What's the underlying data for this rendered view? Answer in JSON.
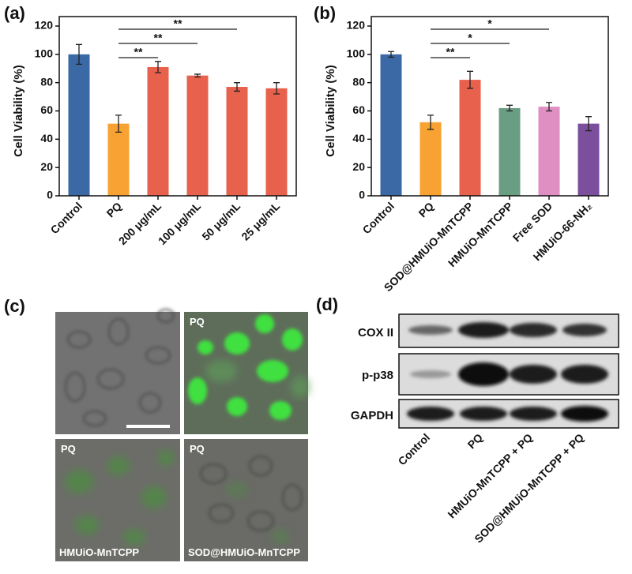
{
  "chart_data": [
    {
      "type": "bar",
      "panel_label": "(a)",
      "y_label": "Cell Viability (%)",
      "categories": [
        "Control",
        "PQ",
        "200 μg/mL",
        "100 μg/mL",
        "50 μg/mL",
        "25 μg/mL"
      ],
      "values": [
        100,
        51,
        91,
        85,
        77,
        76
      ],
      "errors": [
        7,
        6,
        4,
        1,
        3,
        4
      ],
      "colors": [
        "#3a69a6",
        "#f7a232",
        "#e8614d",
        "#e8614d",
        "#e8614d",
        "#e8614d"
      ],
      "ylim": [
        0,
        120
      ],
      "yticks": [
        0,
        20,
        40,
        60,
        80,
        100,
        120
      ],
      "annotations": [
        {
          "label": "**",
          "from": "PQ",
          "to": "200 μg/mL"
        },
        {
          "label": "**",
          "from": "PQ",
          "to": "100 μg/mL"
        },
        {
          "label": "**",
          "from": "PQ",
          "to": "50 μg/mL"
        }
      ]
    },
    {
      "type": "bar",
      "panel_label": "(b)",
      "y_label": "Cell Viability (%)",
      "categories": [
        "Control",
        "PQ",
        "SOD@HMUiO-MnTCPP",
        "HMUiO-MnTCPP",
        "Free SOD",
        "HMUiO-66-NH₂"
      ],
      "values": [
        100,
        52,
        82,
        62,
        63,
        51
      ],
      "errors": [
        2,
        5,
        6,
        2,
        3,
        5
      ],
      "colors": [
        "#3a69a6",
        "#f7a232",
        "#e8614d",
        "#6a9e83",
        "#e08fc2",
        "#7b4f9c"
      ],
      "ylim": [
        0,
        120
      ],
      "yticks": [
        0,
        20,
        40,
        60,
        80,
        100,
        120
      ],
      "annotations": [
        {
          "label": "**",
          "from": "PQ",
          "to": "SOD@HMUiO-MnTCPP"
        },
        {
          "label": "*",
          "from": "PQ",
          "to": "HMUiO-MnTCPP"
        },
        {
          "label": "*",
          "from": "PQ",
          "to": "Free SOD"
        }
      ]
    }
  ],
  "panel_c": {
    "label": "(c)",
    "images": [
      {
        "label": "PQ"
      },
      {
        "label": "PQ",
        "caption": "HMUiO-MnTCPP"
      },
      {
        "label": "PQ",
        "caption": "SOD@HMUiO-MnTCPP"
      }
    ]
  },
  "panel_d": {
    "label": "(d)",
    "rows": [
      "COX II",
      "p-p38",
      "GAPDH"
    ],
    "columns": [
      "Control",
      "PQ",
      "HMUiO-MnTCPP + PQ",
      "SOD@HMUiO-MnTCPP + PQ"
    ]
  }
}
